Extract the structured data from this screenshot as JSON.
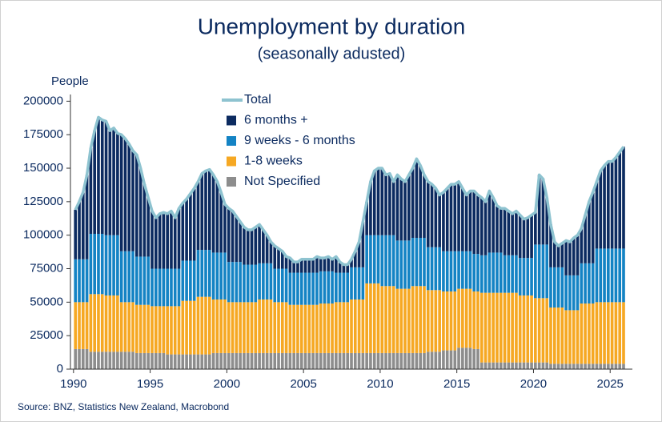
{
  "chart_data": {
    "type": "stacked-bar",
    "title": "Unemployment by duration",
    "subtitle": "(seasonally adusted)",
    "y_label": "People",
    "source": "Source: BNZ, Statistics New Zealand, Macrobond",
    "legend": "upper center",
    "xlim": [
      1989.8,
      2026.45
    ],
    "xticks": [
      1990,
      1995,
      2000,
      2005,
      2010,
      2015,
      2020,
      2025
    ],
    "ylim": [
      0,
      205000
    ],
    "yticks": [
      0,
      25000,
      50000,
      75000,
      100000,
      125000,
      150000,
      175000,
      200000
    ],
    "x": [
      1990,
      1990.25,
      1990.5,
      1990.75,
      1991,
      1991.25,
      1991.5,
      1991.75,
      1992,
      1992.25,
      1992.5,
      1992.75,
      1993,
      1993.25,
      1993.5,
      1993.75,
      1994,
      1994.25,
      1994.5,
      1994.75,
      1995,
      1995.25,
      1995.5,
      1995.75,
      1996,
      1996.25,
      1996.5,
      1996.75,
      1997,
      1997.25,
      1997.5,
      1997.75,
      1998,
      1998.25,
      1998.5,
      1998.75,
      1999,
      1999.25,
      1999.5,
      1999.75,
      2000,
      2000.25,
      2000.5,
      2000.75,
      2001,
      2001.25,
      2001.5,
      2001.75,
      2002,
      2002.25,
      2002.5,
      2002.75,
      2003,
      2003.25,
      2003.5,
      2003.75,
      2004,
      2004.25,
      2004.5,
      2004.75,
      2005,
      2005.25,
      2005.5,
      2005.75,
      2006,
      2006.25,
      2006.5,
      2006.75,
      2007,
      2007.25,
      2007.5,
      2007.75,
      2008,
      2008.25,
      2008.5,
      2008.75,
      2009,
      2009.25,
      2009.5,
      2009.75,
      2010,
      2010.25,
      2010.5,
      2010.75,
      2011,
      2011.25,
      2011.5,
      2011.75,
      2012,
      2012.25,
      2012.5,
      2012.75,
      2013,
      2013.25,
      2013.5,
      2013.75,
      2014,
      2014.25,
      2014.5,
      2014.75,
      2015,
      2015.25,
      2015.5,
      2015.75,
      2016,
      2016.25,
      2016.5,
      2016.75,
      2017,
      2017.25,
      2017.5,
      2017.75,
      2018,
      2018.25,
      2018.5,
      2018.75,
      2019,
      2019.25,
      2019.5,
      2019.75,
      2020,
      2020.25,
      2020.5,
      2020.75,
      2021,
      2021.25,
      2021.5,
      2021.75,
      2022,
      2022.25,
      2022.5,
      2022.75,
      2023,
      2023.25,
      2023.5,
      2023.75,
      2024,
      2024.25,
      2024.5,
      2024.75,
      2025,
      2025.25,
      2025.5,
      2025.75
    ],
    "series": [
      {
        "name": "Total",
        "type": "line",
        "color": "#8ec3d0",
        "values": [
          119000,
          125000,
          132000,
          145000,
          165000,
          178000,
          188000,
          186000,
          185000,
          178000,
          180000,
          176000,
          175000,
          172000,
          168000,
          163000,
          160000,
          150000,
          138000,
          128000,
          118000,
          113000,
          116000,
          117000,
          116000,
          118000,
          113000,
          120000,
          124000,
          127000,
          131000,
          135000,
          140000,
          146000,
          148000,
          149000,
          145000,
          140000,
          132000,
          123000,
          120000,
          118000,
          114000,
          110000,
          106000,
          104000,
          104000,
          106000,
          108000,
          104000,
          100000,
          95000,
          92000,
          90000,
          88000,
          84000,
          83000,
          80000,
          80000,
          82000,
          82000,
          82000,
          82000,
          84000,
          83000,
          83000,
          84000,
          82000,
          84000,
          80000,
          78000,
          78000,
          82000,
          88000,
          95000,
          110000,
          125000,
          140000,
          148000,
          150000,
          150000,
          145000,
          146000,
          140000,
          145000,
          142000,
          140000,
          145000,
          150000,
          157000,
          152000,
          145000,
          140000,
          138000,
          135000,
          130000,
          132000,
          135000,
          138000,
          138000,
          140000,
          135000,
          130000,
          133000,
          133000,
          130000,
          128000,
          125000,
          133000,
          128000,
          122000,
          120000,
          120000,
          118000,
          116000,
          118000,
          115000,
          112000,
          113000,
          115000,
          117000,
          145000,
          142000,
          128000,
          108000,
          95000,
          92000,
          94000,
          96000,
          95000,
          98000,
          100000,
          105000,
          115000,
          125000,
          132000,
          140000,
          148000,
          152000,
          155000,
          155000,
          158000,
          162000,
          166000
        ]
      },
      {
        "name": "6 months +",
        "type": "bar",
        "color": "#0c2b60",
        "values": [
          37000,
          43000,
          50000,
          63000,
          64000,
          77000,
          87000,
          85000,
          85000,
          78000,
          80000,
          76000,
          87000,
          84000,
          80000,
          75000,
          76000,
          66000,
          54000,
          44000,
          43000,
          38000,
          41000,
          42000,
          41000,
          43000,
          38000,
          45000,
          43000,
          46000,
          50000,
          54000,
          51000,
          57000,
          59000,
          60000,
          58000,
          53000,
          45000,
          36000,
          40000,
          38000,
          34000,
          30000,
          28000,
          26000,
          26000,
          28000,
          29000,
          25000,
          21000,
          16000,
          17000,
          15000,
          13000,
          9000,
          11000,
          8000,
          8000,
          10000,
          10000,
          10000,
          10000,
          12000,
          10000,
          10000,
          11000,
          9000,
          12000,
          8000,
          6000,
          6000,
          6000,
          12000,
          19000,
          34000,
          25000,
          40000,
          48000,
          50000,
          50000,
          45000,
          46000,
          40000,
          49000,
          46000,
          44000,
          49000,
          52000,
          59000,
          54000,
          47000,
          49000,
          47000,
          44000,
          39000,
          44000,
          47000,
          50000,
          50000,
          52000,
          47000,
          42000,
          45000,
          47000,
          44000,
          43000,
          40000,
          46000,
          41000,
          35000,
          33000,
          35000,
          33000,
          31000,
          33000,
          32000,
          29000,
          30000,
          32000,
          24000,
          52000,
          49000,
          35000,
          32000,
          19000,
          16000,
          18000,
          26000,
          25000,
          28000,
          30000,
          26000,
          36000,
          46000,
          53000,
          50000,
          58000,
          62000,
          65000,
          65000,
          68000,
          72000,
          76000
        ]
      },
      {
        "name": "9 weeks - 6 months",
        "type": "bar",
        "color": "#1483c4",
        "values": [
          32000,
          32000,
          32000,
          32000,
          45000,
          45000,
          45000,
          45000,
          45000,
          45000,
          45000,
          45000,
          38000,
          38000,
          38000,
          38000,
          36000,
          36000,
          36000,
          36000,
          28000,
          28000,
          28000,
          28000,
          28000,
          28000,
          28000,
          28000,
          30000,
          30000,
          30000,
          30000,
          35000,
          35000,
          35000,
          35000,
          35000,
          35000,
          35000,
          35000,
          30000,
          30000,
          30000,
          30000,
          28000,
          28000,
          28000,
          28000,
          27000,
          27000,
          27000,
          27000,
          25000,
          25000,
          25000,
          25000,
          24000,
          24000,
          24000,
          24000,
          24000,
          24000,
          24000,
          24000,
          24000,
          24000,
          24000,
          24000,
          22000,
          22000,
          22000,
          22000,
          24000,
          24000,
          24000,
          24000,
          36000,
          36000,
          36000,
          36000,
          38000,
          38000,
          38000,
          38000,
          36000,
          36000,
          36000,
          36000,
          36000,
          36000,
          36000,
          36000,
          32000,
          32000,
          32000,
          32000,
          30000,
          30000,
          30000,
          30000,
          28000,
          28000,
          28000,
          28000,
          28000,
          28000,
          28000,
          28000,
          30000,
          30000,
          30000,
          30000,
          28000,
          28000,
          28000,
          28000,
          28000,
          28000,
          28000,
          28000,
          40000,
          40000,
          40000,
          40000,
          30000,
          30000,
          30000,
          30000,
          26000,
          26000,
          26000,
          26000,
          30000,
          30000,
          30000,
          30000,
          40000,
          40000,
          40000,
          40000,
          40000,
          40000,
          40000,
          40000
        ]
      },
      {
        "name": "1-8 weeks",
        "type": "bar",
        "color": "#f6a823",
        "values": [
          35000,
          35000,
          35000,
          35000,
          43000,
          43000,
          43000,
          43000,
          42000,
          42000,
          42000,
          42000,
          37000,
          37000,
          37000,
          37000,
          36000,
          36000,
          36000,
          36000,
          35000,
          35000,
          35000,
          35000,
          36000,
          36000,
          36000,
          36000,
          40000,
          40000,
          40000,
          40000,
          43000,
          43000,
          43000,
          43000,
          40000,
          40000,
          40000,
          40000,
          38000,
          38000,
          38000,
          38000,
          38000,
          38000,
          38000,
          38000,
          40000,
          40000,
          40000,
          40000,
          38000,
          38000,
          38000,
          38000,
          36000,
          36000,
          36000,
          36000,
          36000,
          36000,
          36000,
          36000,
          37000,
          37000,
          37000,
          37000,
          38000,
          38000,
          38000,
          38000,
          40000,
          40000,
          40000,
          40000,
          52000,
          52000,
          52000,
          52000,
          50000,
          50000,
          50000,
          50000,
          48000,
          48000,
          48000,
          48000,
          50000,
          50000,
          50000,
          50000,
          46000,
          46000,
          46000,
          46000,
          44000,
          44000,
          44000,
          44000,
          44000,
          44000,
          44000,
          44000,
          43000,
          43000,
          52000,
          52000,
          52000,
          52000,
          52000,
          52000,
          52000,
          52000,
          52000,
          52000,
          50000,
          50000,
          50000,
          50000,
          48000,
          48000,
          48000,
          48000,
          42000,
          42000,
          42000,
          42000,
          40000,
          40000,
          40000,
          40000,
          45000,
          45000,
          45000,
          45000,
          46000,
          46000,
          46000,
          46000,
          46000,
          46000,
          46000,
          46000
        ]
      },
      {
        "name": "Not Specified",
        "type": "bar",
        "color": "#8d8d8d",
        "values": [
          15000,
          15000,
          15000,
          15000,
          13000,
          13000,
          13000,
          13000,
          13000,
          13000,
          13000,
          13000,
          13000,
          13000,
          13000,
          13000,
          12000,
          12000,
          12000,
          12000,
          12000,
          12000,
          12000,
          12000,
          11000,
          11000,
          11000,
          11000,
          11000,
          11000,
          11000,
          11000,
          11000,
          11000,
          11000,
          11000,
          12000,
          12000,
          12000,
          12000,
          12000,
          12000,
          12000,
          12000,
          12000,
          12000,
          12000,
          12000,
          12000,
          12000,
          12000,
          12000,
          12000,
          12000,
          12000,
          12000,
          12000,
          12000,
          12000,
          12000,
          12000,
          12000,
          12000,
          12000,
          12000,
          12000,
          12000,
          12000,
          12000,
          12000,
          12000,
          12000,
          12000,
          12000,
          12000,
          12000,
          12000,
          12000,
          12000,
          12000,
          12000,
          12000,
          12000,
          12000,
          12000,
          12000,
          12000,
          12000,
          12000,
          12000,
          12000,
          12000,
          13000,
          13000,
          13000,
          13000,
          14000,
          14000,
          14000,
          14000,
          16000,
          16000,
          16000,
          16000,
          15000,
          15000,
          5000,
          5000,
          5000,
          5000,
          5000,
          5000,
          5000,
          5000,
          5000,
          5000,
          5000,
          5000,
          5000,
          5000,
          5000,
          5000,
          5000,
          5000,
          4000,
          4000,
          4000,
          4000,
          4000,
          4000,
          4000,
          4000,
          4000,
          4000,
          4000,
          4000,
          4000,
          4000,
          4000,
          4000,
          4000,
          4000,
          4000,
          4000
        ]
      }
    ]
  }
}
